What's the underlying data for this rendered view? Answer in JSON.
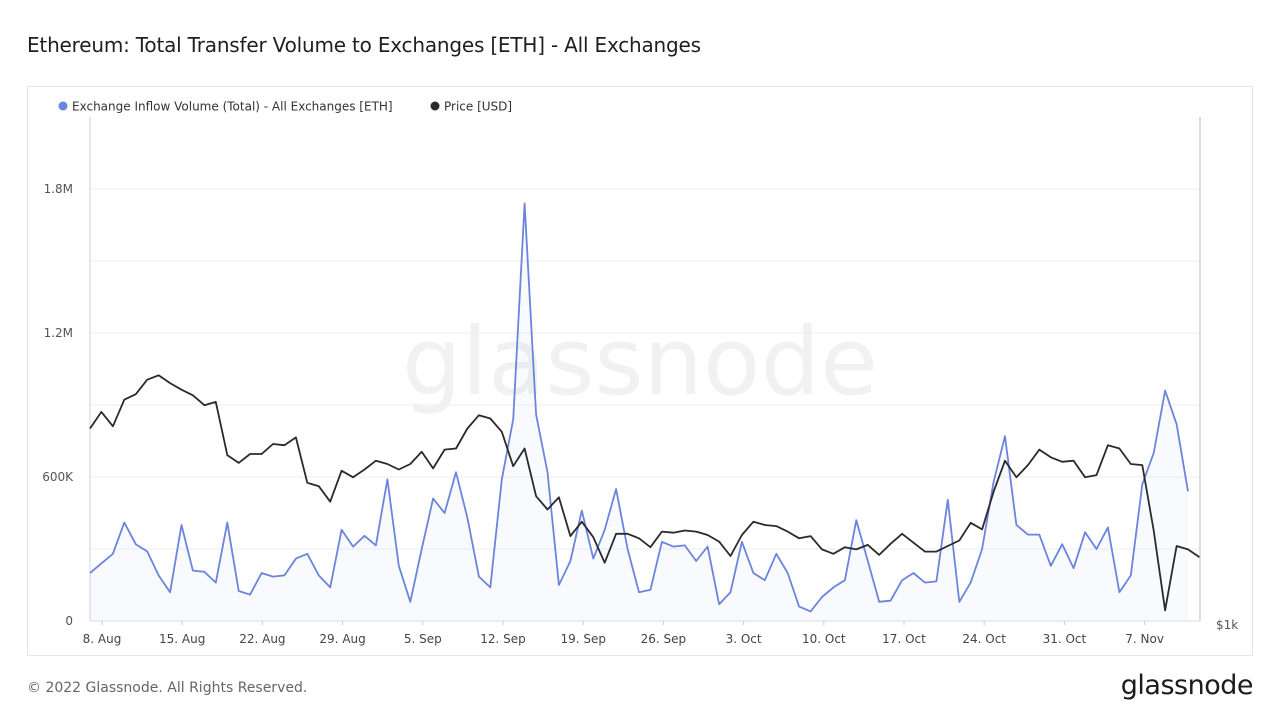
{
  "title": "Ethereum: Total Transfer Volume to Exchanges [ETH] - All Exchanges",
  "footer": {
    "copyright": "© 2022 Glassnode. All Rights Reserved.",
    "logo": "glassnode"
  },
  "watermark": "glassnode",
  "chart_data": {
    "type": "line",
    "x_ticks": [
      "8. Aug",
      "15. Aug",
      "22. Aug",
      "29. Aug",
      "5. Sep",
      "12. Sep",
      "19. Sep",
      "26. Sep",
      "3. Oct",
      "10. Oct",
      "17. Oct",
      "24. Oct",
      "31. Oct",
      "7. Nov"
    ],
    "y_left_ticks": [
      "0",
      "600K",
      "1.2M",
      "1.8M"
    ],
    "y_left_tick_values": [
      0,
      600000,
      1200000,
      1800000
    ],
    "y_left_range": [
      0,
      2100000
    ],
    "y_right_tick": "$1k",
    "grid": true,
    "legend_placement": "top-left",
    "colors": {
      "inflow": "#6b84dd",
      "price": "#2a2a2a",
      "grid": "#eeeeee"
    },
    "series": [
      {
        "name": "Exchange Inflow Volume (Total) - All Exchanges [ETH]",
        "axis": "left",
        "values": [
          200000,
          240000,
          280000,
          410000,
          320000,
          290000,
          190000,
          120000,
          400000,
          210000,
          205000,
          160000,
          410000,
          125000,
          110000,
          200000,
          185000,
          190000,
          260000,
          280000,
          190000,
          140000,
          380000,
          310000,
          355000,
          315000,
          590000,
          230000,
          80000,
          300000,
          510000,
          450000,
          620000,
          430000,
          185000,
          140000,
          590000,
          840000,
          1740000,
          860000,
          620000,
          150000,
          250000,
          460000,
          260000,
          380000,
          550000,
          300000,
          120000,
          130000,
          330000,
          310000,
          315000,
          250000,
          310000,
          70000,
          120000,
          330000,
          200000,
          170000,
          280000,
          200000,
          60000,
          40000,
          100000,
          140000,
          170000,
          420000,
          250000,
          80000,
          85000,
          170000,
          200000,
          160000,
          165000,
          505000,
          80000,
          160000,
          300000,
          580000,
          770000,
          400000,
          360000,
          360000,
          230000,
          320000,
          220000,
          370000,
          300000,
          390000,
          120000,
          190000,
          570000,
          700000,
          960000,
          820000,
          540000
        ]
      },
      {
        "name": "Price [USD]",
        "axis": "right",
        "values": [
          1700,
          1850,
          1720,
          1960,
          2010,
          2140,
          2180,
          2110,
          2050,
          2000,
          1910,
          1940,
          1460,
          1390,
          1470,
          1470,
          1560,
          1550,
          1620,
          1210,
          1180,
          1040,
          1320,
          1260,
          1330,
          1410,
          1380,
          1330,
          1380,
          1490,
          1340,
          1510,
          1520,
          1700,
          1820,
          1790,
          1670,
          1360,
          1520,
          1090,
          970,
          1080,
          730,
          860,
          720,
          490,
          750,
          750,
          710,
          630,
          770,
          760,
          780,
          770,
          740,
          680,
          550,
          740,
          860,
          830,
          820,
          770,
          710,
          730,
          610,
          570,
          630,
          610,
          650,
          560,
          660,
          750,
          670,
          590,
          590,
          640,
          690,
          850,
          790,
          1130,
          1410,
          1260,
          1370,
          1510,
          1440,
          1400,
          1410,
          1260,
          1280,
          1550,
          1520,
          1380,
          1370,
          780,
          60,
          640,
          610,
          540
        ]
      }
    ]
  }
}
